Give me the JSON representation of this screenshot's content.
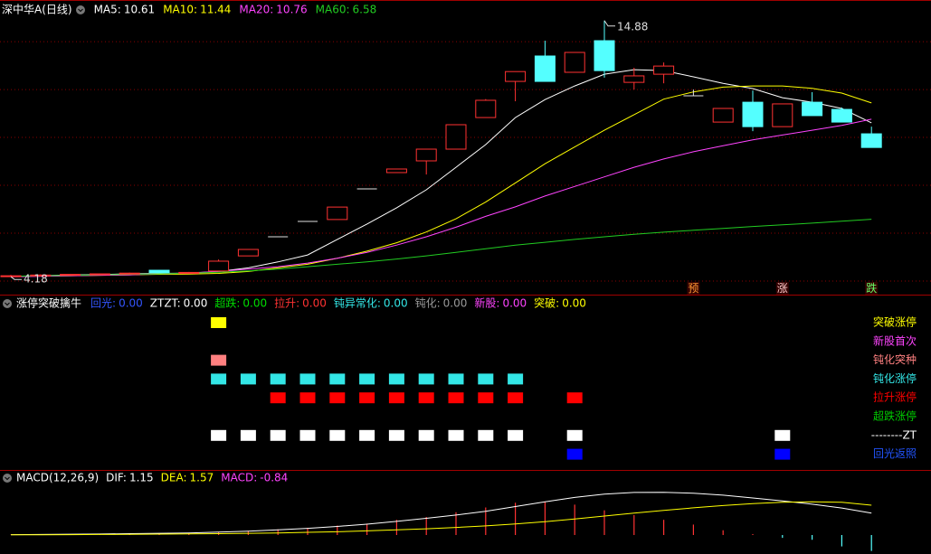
{
  "chart_data": [
    {
      "type": "candlestick",
      "title": "深中华A(日线)",
      "open": [
        4.2,
        4.22,
        4.25,
        4.28,
        4.3,
        4.45,
        4.33,
        4.42,
        5.05,
        5.85,
        6.49,
        6.57,
        7.85,
        8.53,
        9.02,
        9.51,
        10.83,
        12.34,
        13.4,
        12.72,
        14.04,
        12.3,
        12.64,
        11.74,
        10.64,
        11.47,
        10.45,
        11.47,
        11.17,
        10.15
      ],
      "high": [
        4.26,
        4.28,
        4.3,
        4.32,
        4.35,
        4.46,
        4.38,
        4.9,
        5.32,
        5.85,
        6.49,
        7.09,
        7.85,
        8.68,
        9.51,
        10.53,
        11.6,
        12.75,
        14.04,
        13.55,
        14.88,
        12.91,
        13.13,
        12.0,
        11.21,
        11.96,
        11.4,
        11.89,
        11.25,
        10.45
      ],
      "low": [
        4.18,
        4.2,
        4.23,
        4.26,
        4.28,
        4.33,
        4.31,
        4.4,
        5.05,
        5.85,
        6.49,
        6.57,
        7.85,
        8.53,
        8.45,
        9.51,
        10.83,
        11.51,
        12.34,
        12.72,
        12.5,
        12.0,
        12.26,
        11.74,
        10.64,
        10.26,
        10.45,
        10.91,
        10.64,
        9.58
      ],
      "close": [
        4.22,
        4.25,
        4.28,
        4.3,
        4.33,
        4.35,
        4.36,
        4.83,
        5.32,
        5.85,
        6.49,
        7.09,
        7.85,
        8.68,
        9.51,
        10.53,
        11.55,
        12.75,
        12.34,
        13.55,
        12.79,
        12.57,
        12.98,
        11.74,
        11.21,
        10.45,
        11.4,
        10.91,
        10.64,
        9.58
      ],
      "up_color": "#ff3232",
      "down_color": "#54ffff",
      "flat_color": "#e0e0e0",
      "series": [
        {
          "name": "MA5:",
          "color": "#ffffff",
          "values": [
            4.2,
            4.22,
            4.25,
            4.27,
            4.3,
            4.32,
            4.33,
            4.4,
            4.55,
            4.8,
            5.09,
            5.74,
            6.38,
            7.06,
            7.81,
            8.75,
            9.7,
            10.83,
            11.58,
            12.15,
            12.64,
            12.83,
            12.79,
            12.53,
            12.26,
            12.04,
            11.66,
            11.47,
            11.21,
            10.61
          ]
        },
        {
          "name": "MA10:",
          "color": "#ffff00",
          "values": [
            4.2,
            4.21,
            4.22,
            4.24,
            4.26,
            4.28,
            4.29,
            4.32,
            4.4,
            4.55,
            4.7,
            4.95,
            5.25,
            5.6,
            6.05,
            6.6,
            7.3,
            8.1,
            8.9,
            9.6,
            10.3,
            10.95,
            11.6,
            11.9,
            12.1,
            12.15,
            12.15,
            12.05,
            11.85,
            11.44
          ]
        },
        {
          "name": "MA20:",
          "color": "#ff44ff",
          "values": [
            4.18,
            4.2,
            4.22,
            4.24,
            4.26,
            4.3,
            4.34,
            4.4,
            4.5,
            4.6,
            4.75,
            4.95,
            5.2,
            5.5,
            5.85,
            6.25,
            6.7,
            7.1,
            7.55,
            7.95,
            8.35,
            8.75,
            9.1,
            9.4,
            9.65,
            9.9,
            10.1,
            10.3,
            10.5,
            10.76
          ]
        },
        {
          "name": "MA60:",
          "color": "#22cc22",
          "values": [
            4.2,
            4.22,
            4.24,
            4.26,
            4.28,
            4.3,
            4.33,
            4.37,
            4.42,
            4.5,
            4.6,
            4.7,
            4.8,
            4.92,
            5.05,
            5.2,
            5.35,
            5.5,
            5.62,
            5.74,
            5.85,
            5.95,
            6.04,
            6.12,
            6.2,
            6.28,
            6.35,
            6.42,
            6.5,
            6.58
          ]
        }
      ],
      "flags": [
        null,
        null,
        null,
        null,
        null,
        null,
        null,
        null,
        null,
        null,
        null,
        null,
        null,
        null,
        null,
        null,
        null,
        null,
        null,
        null,
        null,
        null,
        null,
        "预",
        null,
        null,
        "涨",
        null,
        null,
        "跌"
      ],
      "flag_colors": [
        null,
        null,
        null,
        null,
        null,
        null,
        null,
        null,
        null,
        null,
        null,
        null,
        null,
        null,
        null,
        null,
        null,
        null,
        null,
        null,
        null,
        null,
        null,
        "#ff9933",
        null,
        null,
        "#ffcccc",
        null,
        null,
        "#66ff66"
      ],
      "ylim": [
        3.47,
        15.74
      ],
      "grid": [
        4,
        6,
        8,
        10,
        12,
        14
      ]
    },
    {
      "type": "signal",
      "title": "涨停突破擒牛",
      "indicators": [
        {
          "name": "回光:",
          "value": 0,
          "label": "0.00",
          "color": "#3355ff"
        },
        {
          "name": "ZTZT:",
          "value": 0,
          "label": "0.00",
          "color": "#ffffff"
        },
        {
          "name": "超跌:",
          "value": 0,
          "label": "0.00",
          "color": "#00dd00"
        },
        {
          "name": "拉升:",
          "value": 0,
          "label": "0.00",
          "color": "#ff3232"
        },
        {
          "name": "钝异常化:",
          "value": 0,
          "label": "0.00",
          "color": "#33e6e6"
        },
        {
          "name": "钝化:",
          "value": 0,
          "label": "0.00",
          "color": "#999999"
        },
        {
          "name": "新股:",
          "value": 0,
          "label": "0.00",
          "color": "#ff44ff"
        },
        {
          "name": "突破:",
          "value": 0,
          "label": "0.00",
          "color": "#ffff00"
        }
      ],
      "series": [
        {
          "name": "突破涨停",
          "color": "#ffff00",
          "values": [
            null,
            null,
            null,
            null,
            null,
            null,
            null,
            1,
            null,
            null,
            null,
            null,
            null,
            null,
            null,
            null,
            null,
            null,
            null,
            null,
            null,
            null,
            null,
            null,
            null,
            null,
            null,
            null,
            null,
            null
          ]
        },
        {
          "name": "新股首次",
          "color": "#ff44ff",
          "values": [
            null,
            null,
            null,
            null,
            null,
            null,
            null,
            null,
            null,
            null,
            null,
            null,
            null,
            null,
            null,
            null,
            null,
            null,
            null,
            null,
            null,
            null,
            null,
            null,
            null,
            null,
            null,
            null,
            null,
            null
          ]
        },
        {
          "name": "钝化突种",
          "color": "#ff8080",
          "values": [
            null,
            null,
            null,
            null,
            null,
            null,
            null,
            1,
            null,
            null,
            null,
            null,
            null,
            null,
            null,
            null,
            null,
            null,
            null,
            null,
            null,
            null,
            null,
            null,
            null,
            null,
            null,
            null,
            null,
            null
          ]
        },
        {
          "name": "钝化涨停",
          "color": "#33e6e6",
          "values": [
            null,
            null,
            null,
            null,
            null,
            null,
            null,
            1,
            1,
            1,
            1,
            1,
            1,
            1,
            1,
            1,
            1,
            1,
            null,
            null,
            null,
            null,
            null,
            null,
            null,
            null,
            null,
            null,
            null,
            null
          ]
        },
        {
          "name": "拉升涨停",
          "color": "#ff0000",
          "values": [
            null,
            null,
            null,
            null,
            null,
            null,
            null,
            null,
            null,
            1,
            1,
            1,
            1,
            1,
            1,
            1,
            1,
            1,
            null,
            1,
            null,
            null,
            null,
            null,
            null,
            null,
            null,
            null,
            null,
            null
          ]
        },
        {
          "name": "超跌涨停",
          "color": "#00cc00",
          "values": [
            null,
            null,
            null,
            null,
            null,
            null,
            null,
            null,
            null,
            null,
            null,
            null,
            null,
            null,
            null,
            null,
            null,
            null,
            null,
            null,
            null,
            null,
            null,
            null,
            null,
            null,
            null,
            null,
            null,
            null
          ]
        },
        {
          "name": "--------ZT",
          "color": "#ffffff",
          "values": [
            null,
            null,
            null,
            null,
            null,
            null,
            null,
            1,
            1,
            1,
            1,
            1,
            1,
            1,
            1,
            1,
            1,
            1,
            null,
            1,
            null,
            null,
            null,
            null,
            null,
            null,
            1,
            null,
            null,
            null
          ]
        },
        {
          "name": "回光返照",
          "color": "#0000ff",
          "values": [
            null,
            null,
            null,
            null,
            null,
            null,
            null,
            null,
            null,
            null,
            null,
            null,
            null,
            null,
            null,
            null,
            null,
            null,
            null,
            1,
            null,
            null,
            null,
            null,
            null,
            null,
            1,
            null,
            null,
            null
          ]
        }
      ]
    },
    {
      "type": "macd",
      "title": "MACD(12,26,9)",
      "series": [
        {
          "name": "DIF:",
          "color": "#ffffff",
          "values": [
            0.02,
            0.03,
            0.04,
            0.05,
            0.07,
            0.09,
            0.11,
            0.15,
            0.2,
            0.27,
            0.35,
            0.45,
            0.57,
            0.72,
            0.88,
            1.05,
            1.25,
            1.5,
            1.75,
            1.98,
            2.15,
            2.24,
            2.25,
            2.2,
            2.1,
            1.95,
            1.8,
            1.62,
            1.42,
            1.15
          ]
        },
        {
          "name": "DEA:",
          "color": "#ffff00",
          "values": [
            0.01,
            0.015,
            0.02,
            0.03,
            0.035,
            0.045,
            0.06,
            0.07,
            0.09,
            0.11,
            0.14,
            0.17,
            0.22,
            0.27,
            0.33,
            0.4,
            0.48,
            0.58,
            0.7,
            0.84,
            1.0,
            1.15,
            1.3,
            1.43,
            1.55,
            1.65,
            1.72,
            1.75,
            1.72,
            1.57
          ]
        },
        {
          "name": "MACD:",
          "color": "#ff44ff",
          "values": [
            0.02,
            0.03,
            0.04,
            0.05,
            0.07,
            0.08,
            0.1,
            0.15,
            0.22,
            0.3,
            0.38,
            0.5,
            0.6,
            0.8,
            0.95,
            1.2,
            1.45,
            1.7,
            1.75,
            1.6,
            1.3,
            1.05,
            0.8,
            0.55,
            0.25,
            0.05,
            -0.15,
            -0.25,
            -0.6,
            -0.84
          ]
        }
      ],
      "up_color": "#ff3232",
      "down_color": "#54ffff",
      "ylim": [
        -1.0,
        2.95
      ]
    }
  ]
}
